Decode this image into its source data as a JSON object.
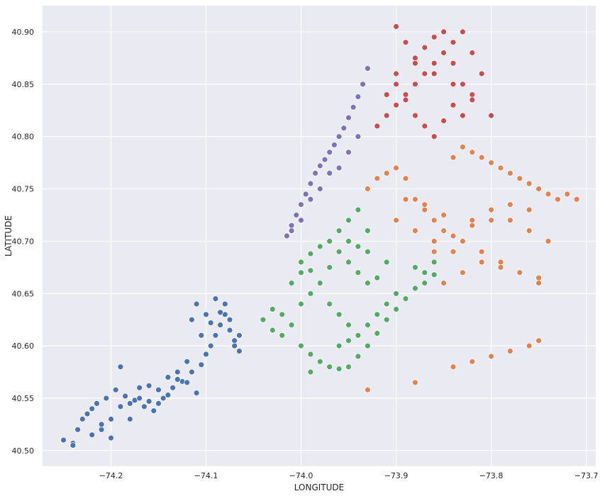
{
  "chart_data": {
    "type": "scatter",
    "title": "",
    "xlabel": "LONGITUDE",
    "ylabel": "LATITUDE",
    "xlim": [
      -74.272,
      -73.69
    ],
    "ylim": [
      40.485,
      40.925
    ],
    "grid": true,
    "legend": "none",
    "xticks": [
      {
        "value": -74.2,
        "label": "−74.2"
      },
      {
        "value": -74.1,
        "label": "−74.1"
      },
      {
        "value": -74.0,
        "label": "−74.0"
      },
      {
        "value": -73.9,
        "label": "−73.9"
      },
      {
        "value": -73.8,
        "label": "−73.8"
      },
      {
        "value": -73.7,
        "label": "−73.7"
      }
    ],
    "yticks": [
      {
        "value": 40.5,
        "label": "40.50"
      },
      {
        "value": 40.55,
        "label": "40.55"
      },
      {
        "value": 40.6,
        "label": "40.60"
      },
      {
        "value": 40.65,
        "label": "40.65"
      },
      {
        "value": 40.7,
        "label": "40.70"
      },
      {
        "value": 40.75,
        "label": "40.75"
      },
      {
        "value": 40.8,
        "label": "40.80"
      },
      {
        "value": 40.85,
        "label": "40.85"
      },
      {
        "value": 40.9,
        "label": "40.90"
      }
    ],
    "series": [
      {
        "color": "#4c72b0",
        "x": [
          -74.25,
          -74.24,
          -74.235,
          -74.225,
          -74.215,
          -74.205,
          -74.195,
          -74.185,
          -74.175,
          -74.165,
          -74.155,
          -74.145,
          -74.135,
          -74.125,
          -74.115,
          -74.105,
          -74.1,
          -74.095,
          -74.09,
          -74.085,
          -74.08,
          -74.075,
          -74.07,
          -74.065,
          -74.11,
          -74.115,
          -74.09,
          -74.08,
          -74.07,
          -74.1,
          -74.13,
          -74.14,
          -74.16,
          -74.18,
          -74.2,
          -74.21,
          -74.22,
          -74.23,
          -74.19,
          -74.17,
          -74.15,
          -74.12,
          -74.095,
          -74.105,
          -74.085,
          -74.075,
          -74.065,
          -74.11,
          -74.12,
          -74.13,
          -74.14,
          -74.15,
          -74.16,
          -74.17,
          -74.18,
          -74.19,
          -74.2,
          -74.21,
          -74.22,
          -74.24
        ],
        "y": [
          40.51,
          40.507,
          40.52,
          40.535,
          40.545,
          40.55,
          40.558,
          40.552,
          40.548,
          40.542,
          40.538,
          40.55,
          40.56,
          40.566,
          40.575,
          40.582,
          40.592,
          40.6,
          40.61,
          40.62,
          40.63,
          40.615,
          40.605,
          40.595,
          40.64,
          40.625,
          40.645,
          40.64,
          40.6,
          40.63,
          40.575,
          40.57,
          40.562,
          40.53,
          40.512,
          40.52,
          40.54,
          40.53,
          40.58,
          40.55,
          40.545,
          40.585,
          40.622,
          40.61,
          40.632,
          40.625,
          40.61,
          40.555,
          40.565,
          40.568,
          40.553,
          40.558,
          40.547,
          40.56,
          40.545,
          40.542,
          40.53,
          40.525,
          40.515,
          40.505
        ]
      },
      {
        "color": "#55a868",
        "x": [
          -74.04,
          -74.03,
          -74.02,
          -74.01,
          -74.0,
          -73.99,
          -73.98,
          -73.97,
          -73.96,
          -73.95,
          -73.94,
          -73.93,
          -73.92,
          -73.91,
          -73.9,
          -73.89,
          -73.88,
          -73.87,
          -73.86,
          -74.0,
          -73.99,
          -73.98,
          -73.97,
          -73.96,
          -73.95,
          -73.94,
          -73.93,
          -73.92,
          -73.91,
          -73.9,
          -73.88,
          -73.87,
          -73.86,
          -74.0,
          -73.99,
          -73.98,
          -73.97,
          -73.96,
          -73.95,
          -73.94,
          -73.93,
          -73.92,
          -73.91,
          -74.01,
          -74.0,
          -73.99,
          -73.98,
          -73.97,
          -73.96,
          -73.95,
          -73.94,
          -73.93,
          -73.95,
          -73.94,
          -73.93,
          -73.96,
          -73.95,
          -74.02,
          -74.03,
          -73.99
        ],
        "y": [
          40.625,
          40.635,
          40.63,
          40.62,
          40.6,
          40.592,
          40.585,
          40.58,
          40.578,
          40.58,
          40.59,
          40.6,
          40.612,
          40.625,
          40.635,
          40.645,
          40.655,
          40.66,
          40.668,
          40.64,
          40.65,
          40.66,
          40.64,
          40.63,
          40.62,
          40.61,
          40.62,
          40.63,
          40.64,
          40.65,
          40.675,
          40.67,
          40.68,
          40.68,
          40.688,
          40.695,
          40.7,
          40.69,
          40.68,
          40.67,
          40.66,
          40.665,
          40.68,
          40.66,
          40.67,
          40.672,
          40.66,
          40.675,
          40.71,
          40.72,
          40.73,
          40.71,
          40.7,
          40.695,
          40.69,
          40.6,
          40.605,
          40.61,
          40.615,
          40.575
        ]
      },
      {
        "color": "#dd8452",
        "x": [
          -73.93,
          -73.92,
          -73.91,
          -73.9,
          -73.89,
          -73.88,
          -73.87,
          -73.86,
          -73.85,
          -73.84,
          -73.83,
          -73.82,
          -73.81,
          -73.8,
          -73.79,
          -73.78,
          -73.77,
          -73.76,
          -73.75,
          -73.74,
          -73.73,
          -73.72,
          -73.71,
          -73.9,
          -73.88,
          -73.86,
          -73.84,
          -73.82,
          -73.8,
          -73.78,
          -73.76,
          -73.74,
          -73.89,
          -73.87,
          -73.85,
          -73.83,
          -73.81,
          -73.79,
          -73.77,
          -73.75,
          -73.85,
          -73.83,
          -73.81,
          -73.79,
          -73.77,
          -73.75,
          -73.86,
          -73.84,
          -73.82,
          -73.8,
          -73.78,
          -73.76,
          -73.84,
          -73.82,
          -73.8,
          -73.78,
          -73.76,
          -73.75,
          -73.88,
          -73.93
        ],
        "y": [
          40.75,
          40.76,
          40.765,
          40.77,
          40.76,
          40.74,
          40.73,
          40.72,
          40.71,
          40.78,
          40.79,
          40.785,
          40.78,
          40.775,
          40.77,
          40.765,
          40.76,
          40.755,
          40.75,
          40.745,
          40.74,
          40.745,
          40.74,
          40.72,
          40.71,
          40.7,
          40.69,
          40.72,
          40.73,
          40.72,
          40.71,
          40.7,
          40.74,
          40.735,
          40.725,
          40.7,
          40.69,
          40.68,
          40.67,
          40.665,
          40.66,
          40.67,
          40.68,
          40.675,
          40.67,
          40.66,
          40.69,
          40.705,
          40.715,
          40.72,
          40.735,
          40.73,
          40.58,
          40.585,
          40.59,
          40.595,
          40.6,
          40.605,
          40.565,
          40.558
        ]
      },
      {
        "color": "#8172b3",
        "x": [
          -74.015,
          -74.01,
          -74.005,
          -74.0,
          -73.995,
          -73.99,
          -73.985,
          -73.98,
          -73.975,
          -73.97,
          -73.965,
          -73.96,
          -73.955,
          -73.95,
          -73.945,
          -73.94,
          -73.935,
          -73.93,
          -74.01,
          -74.0,
          -73.99,
          -73.98,
          -73.97,
          -73.96,
          -73.95,
          -73.94
        ],
        "y": [
          40.705,
          40.715,
          40.725,
          40.735,
          40.745,
          40.755,
          40.765,
          40.772,
          40.778,
          40.785,
          40.792,
          40.8,
          40.808,
          40.818,
          40.828,
          40.838,
          40.85,
          40.865,
          40.71,
          40.72,
          40.74,
          40.75,
          40.765,
          40.77,
          40.785,
          40.8
        ]
      },
      {
        "color": "#c44e52",
        "x": [
          -73.92,
          -73.91,
          -73.9,
          -73.89,
          -73.88,
          -73.87,
          -73.86,
          -73.85,
          -73.84,
          -73.83,
          -73.82,
          -73.81,
          -73.8,
          -73.9,
          -73.89,
          -73.88,
          -73.87,
          -73.86,
          -73.85,
          -73.84,
          -73.83,
          -73.82,
          -73.9,
          -73.89,
          -73.88,
          -73.87,
          -73.86,
          -73.85,
          -73.84,
          -73.83,
          -73.91,
          -73.9,
          -73.88,
          -73.86,
          -73.84,
          -73.82
        ],
        "y": [
          40.81,
          40.82,
          40.83,
          40.84,
          40.85,
          40.86,
          40.87,
          40.88,
          40.89,
          40.9,
          40.88,
          40.86,
          40.82,
          40.905,
          40.89,
          40.875,
          40.885,
          40.895,
          40.9,
          40.87,
          40.85,
          40.84,
          40.85,
          40.835,
          40.82,
          40.81,
          40.8,
          40.815,
          40.83,
          40.82,
          40.84,
          40.86,
          40.87,
          40.86,
          40.85,
          40.835
        ]
      }
    ]
  }
}
